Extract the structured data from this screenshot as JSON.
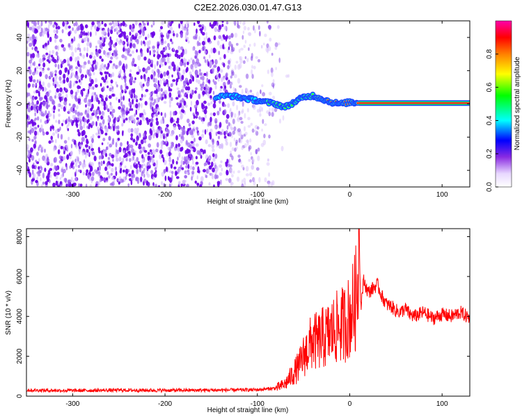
{
  "title": "C2E2.2026.030.01.47.G13",
  "chart_data": [
    {
      "type": "heatmap",
      "title": "C2E2.2026.030.01.47.G13",
      "xlabel": "Height of straight line (km)",
      "ylabel": "Frequency (Hz)",
      "xlim": [
        -350,
        130
      ],
      "ylim": [
        -50,
        50
      ],
      "xticks": [
        -300,
        -200,
        -100,
        0,
        100
      ],
      "yticks": [
        -40,
        -20,
        0,
        20,
        40
      ],
      "colorbar": {
        "label": "Normalized spectral amplitude",
        "ticks": [
          0.0,
          0.2,
          0.4,
          0.6,
          0.8
        ],
        "range": [
          0,
          1
        ],
        "colors": [
          "#ffffff",
          "#8a2be2",
          "#0000ff",
          "#00ffff",
          "#00ff00",
          "#ffff00",
          "#ff8000",
          "#ff0000",
          "#ff00aa"
        ]
      },
      "features": {
        "noise_region_x": [
          -350,
          -75
        ],
        "signal_trace": {
          "x": [
            -145,
            -130,
            -120,
            -110,
            -100,
            -90,
            -80,
            -70,
            -60,
            -50,
            -40,
            -30,
            -20,
            -10,
            0,
            10,
            20,
            40,
            60,
            80,
            100,
            130
          ],
          "freq": [
            4,
            5,
            4,
            3,
            2,
            1,
            0,
            -2,
            1,
            4,
            5,
            3,
            1,
            0,
            1,
            0.5,
            0.5,
            0.5,
            0.5,
            0.5,
            0.5,
            0.5
          ]
        },
        "steady_line_x": [
          10,
          130
        ]
      }
    },
    {
      "type": "line",
      "xlabel": "Height of straight line (km)",
      "ylabel": "SNR (10 * v/v)",
      "xlim": [
        -350,
        130
      ],
      "ylim": [
        0,
        8400
      ],
      "xticks": [
        -300,
        -200,
        -100,
        0,
        100
      ],
      "yticks": [
        0,
        2000,
        4000,
        6000,
        8000
      ],
      "line_color": "#ff0000",
      "series": [
        {
          "x": [
            -350,
            -300,
            -250,
            -200,
            -150,
            -100,
            -80,
            -70,
            -60,
            -55,
            -50,
            -45,
            -40,
            -35,
            -30,
            -25,
            -20,
            -15,
            -10,
            -5,
            0,
            5,
            8,
            10,
            12,
            15,
            20,
            25,
            30,
            35,
            40,
            45,
            50,
            55,
            60,
            65,
            70,
            80,
            90,
            100,
            110,
            120,
            130
          ],
          "y": [
            300,
            280,
            300,
            290,
            300,
            320,
            400,
            600,
            1200,
            1500,
            2000,
            2400,
            2800,
            2700,
            2900,
            3000,
            3200,
            3400,
            3500,
            3700,
            4000,
            4600,
            5200,
            8400,
            4500,
            5800,
            5200,
            5400,
            5600,
            5000,
            4600,
            4500,
            4300,
            4200,
            4400,
            4100,
            4000,
            4200,
            3900,
            4100,
            4000,
            4200,
            3900
          ]
        }
      ]
    }
  ]
}
